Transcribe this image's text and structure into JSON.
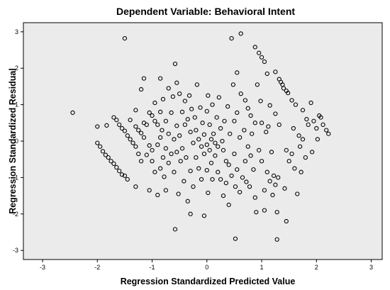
{
  "chart_data": {
    "type": "scatter",
    "title": "Dependent Variable: Behavioral Intent",
    "xlabel": "Regression Standardized Predicted Value",
    "ylabel": "Regression Standardized Residual",
    "xlim": [
      -3.35,
      3.2
    ],
    "ylim": [
      -3.25,
      3.25
    ],
    "x_ticks": [
      "-3",
      "-2",
      "-1",
      "0",
      "1",
      "2",
      "3"
    ],
    "y_ticks": [
      "3",
      "2",
      "1",
      "0",
      "-1",
      "-2",
      "-3"
    ],
    "grid": false,
    "legend": "none",
    "plot_background": "#ebebeb",
    "marker": "open-circle",
    "points": [
      [
        -2.45,
        0.78
      ],
      [
        -2.0,
        0.4
      ],
      [
        -2.0,
        -0.05
      ],
      [
        -1.95,
        -0.15
      ],
      [
        -1.9,
        -0.28
      ],
      [
        -1.85,
        -0.38
      ],
      [
        -1.83,
        0.43
      ],
      [
        -1.8,
        -0.45
      ],
      [
        -1.75,
        -0.55
      ],
      [
        -1.7,
        0.65
      ],
      [
        -1.7,
        -0.62
      ],
      [
        -1.65,
        0.58
      ],
      [
        -1.65,
        -0.72
      ],
      [
        -1.6,
        0.45
      ],
      [
        -1.6,
        -0.82
      ],
      [
        -1.55,
        0.35
      ],
      [
        -1.55,
        -0.92
      ],
      [
        -1.5,
        2.82
      ],
      [
        -1.5,
        0.28
      ],
      [
        -1.5,
        -0.95
      ],
      [
        -1.45,
        0.15
      ],
      [
        -1.45,
        -1.05
      ],
      [
        -1.4,
        0.58
      ],
      [
        -1.4,
        0.05
      ],
      [
        -1.35,
        -0.05
      ],
      [
        -1.3,
        0.85
      ],
      [
        -1.3,
        0.4
      ],
      [
        -1.3,
        -0.15
      ],
      [
        -1.3,
        -1.25
      ],
      [
        -1.25,
        0.3
      ],
      [
        -1.25,
        -0.35
      ],
      [
        -1.2,
        1.42
      ],
      [
        -1.2,
        0.22
      ],
      [
        -1.2,
        -0.55
      ],
      [
        -1.15,
        1.72
      ],
      [
        -1.15,
        0.5
      ],
      [
        -1.15,
        0.1
      ],
      [
        -1.1,
        0.45
      ],
      [
        -1.1,
        -0.38
      ],
      [
        -1.05,
        0.78
      ],
      [
        -1.05,
        -0.12
      ],
      [
        -1.05,
        -1.35
      ],
      [
        -1.0,
        0.7
      ],
      [
        -1.0,
        -0.25
      ],
      [
        -1.0,
        -0.55
      ],
      [
        -0.95,
        0.55
      ],
      [
        -0.95,
        1.05
      ],
      [
        -0.95,
        -0.85
      ],
      [
        -0.9,
        0.45
      ],
      [
        -0.9,
        -0.1
      ],
      [
        -0.9,
        -1.48
      ],
      [
        -0.85,
        1.72
      ],
      [
        -0.85,
        0.8
      ],
      [
        -0.85,
        0.1
      ],
      [
        -0.85,
        -0.75
      ],
      [
        -0.82,
        0.3
      ],
      [
        -0.8,
        1.15
      ],
      [
        -0.8,
        -0.45
      ],
      [
        -0.78,
        -0.98
      ],
      [
        -0.75,
        0.55
      ],
      [
        -0.75,
        -0.2
      ],
      [
        -0.75,
        -1.35
      ],
      [
        -0.7,
        1.45
      ],
      [
        -0.7,
        0.2
      ],
      [
        -0.7,
        -0.6
      ],
      [
        -0.65,
        0.78
      ],
      [
        -0.65,
        -0.35
      ],
      [
        -0.62,
        1.22
      ],
      [
        -0.6,
        0.05
      ],
      [
        -0.6,
        -0.85
      ],
      [
        -0.58,
        2.12
      ],
      [
        -0.58,
        -2.42
      ],
      [
        -0.55,
        1.6
      ],
      [
        -0.55,
        0.42
      ],
      [
        -0.55,
        -0.3
      ],
      [
        -0.52,
        -1.45
      ],
      [
        -0.5,
        1.3
      ],
      [
        -0.5,
        0.15
      ],
      [
        -0.48,
        -0.55
      ],
      [
        -0.45,
        0.8
      ],
      [
        -0.45,
        -0.2
      ],
      [
        -0.42,
        -1.1
      ],
      [
        -0.4,
        1.1
      ],
      [
        -0.4,
        0.45
      ],
      [
        -0.38,
        -0.45
      ],
      [
        -0.35,
        -1.65
      ],
      [
        -0.35,
        0.6
      ],
      [
        -0.32,
        1.25
      ],
      [
        -0.3,
        0.25
      ],
      [
        -0.3,
        -0.82
      ],
      [
        -0.3,
        -2.0
      ],
      [
        -0.28,
        0.88
      ],
      [
        -0.25,
        -0.05
      ],
      [
        -0.25,
        -1.25
      ],
      [
        -0.22,
        0.65
      ],
      [
        -0.2,
        0.3
      ],
      [
        -0.2,
        -0.45
      ],
      [
        -0.18,
        1.55
      ],
      [
        -0.15,
        0.05
      ],
      [
        -0.15,
        -0.75
      ],
      [
        -0.12,
        0.92
      ],
      [
        -0.1,
        -0.15
      ],
      [
        -0.1,
        -1.05
      ],
      [
        -0.08,
        0.5
      ],
      [
        -0.05,
        0.18
      ],
      [
        -0.05,
        -0.35
      ],
      [
        -0.05,
        -2.05
      ],
      [
        0.0,
        0.82
      ],
      [
        0.0,
        -0.1
      ],
      [
        0.0,
        -0.8
      ],
      [
        0.02,
        1.25
      ],
      [
        0.02,
        -1.42
      ],
      [
        0.05,
        0.45
      ],
      [
        0.05,
        -0.25
      ],
      [
        0.08,
        0.05
      ],
      [
        0.08,
        -0.6
      ],
      [
        0.1,
        1.0
      ],
      [
        0.1,
        -1.05
      ],
      [
        0.12,
        0.2
      ],
      [
        0.15,
        -0.05
      ],
      [
        0.15,
        -0.4
      ],
      [
        0.18,
        0.65
      ],
      [
        0.2,
        -0.15
      ],
      [
        0.2,
        -0.85
      ],
      [
        0.22,
        1.2
      ],
      [
        0.25,
        0.35
      ],
      [
        0.25,
        -1.05
      ],
      [
        0.28,
        0.0
      ],
      [
        0.3,
        -0.25
      ],
      [
        0.3,
        -1.5
      ],
      [
        0.32,
        0.55
      ],
      [
        0.35,
        -0.55
      ],
      [
        0.35,
        -1.15
      ],
      [
        0.38,
        0.95
      ],
      [
        0.4,
        -0.65
      ],
      [
        0.4,
        -1.75
      ],
      [
        0.42,
        0.2
      ],
      [
        0.45,
        2.82
      ],
      [
        0.45,
        -0.95
      ],
      [
        0.48,
        1.55
      ],
      [
        0.5,
        0.55
      ],
      [
        0.5,
        -0.35
      ],
      [
        0.52,
        -1.25
      ],
      [
        0.52,
        -2.68
      ],
      [
        0.55,
        1.88
      ],
      [
        0.55,
        0.78
      ],
      [
        0.55,
        -0.78
      ],
      [
        0.6,
        0.1
      ],
      [
        0.6,
        -1.4
      ],
      [
        0.62,
        2.95
      ],
      [
        0.62,
        1.3
      ],
      [
        0.65,
        -1.0
      ],
      [
        0.68,
        0.3
      ],
      [
        0.7,
        1.12
      ],
      [
        0.7,
        -0.55
      ],
      [
        0.72,
        -1.12
      ],
      [
        0.75,
        0.9
      ],
      [
        0.75,
        -0.15
      ],
      [
        0.78,
        -1.25
      ],
      [
        0.8,
        0.7
      ],
      [
        0.8,
        -0.4
      ],
      [
        0.82,
        0.2
      ],
      [
        0.85,
        -0.78
      ],
      [
        0.88,
        2.58
      ],
      [
        0.88,
        0.5
      ],
      [
        0.88,
        -1.55
      ],
      [
        0.9,
        -1.95
      ],
      [
        0.92,
        1.55
      ],
      [
        0.95,
        2.42
      ],
      [
        0.95,
        -0.25
      ],
      [
        0.98,
        1.1
      ],
      [
        1.0,
        2.3
      ],
      [
        1.0,
        0.5
      ],
      [
        1.0,
        -0.55
      ],
      [
        1.05,
        2.18
      ],
      [
        1.05,
        -1.35
      ],
      [
        1.05,
        -1.9
      ],
      [
        1.08,
        0.25
      ],
      [
        1.1,
        1.85
      ],
      [
        1.1,
        -0.85
      ],
      [
        1.12,
        0.4
      ],
      [
        1.15,
        0.98
      ],
      [
        1.15,
        -1.1
      ],
      [
        1.18,
        -0.3
      ],
      [
        1.2,
        -1.48
      ],
      [
        1.22,
        -0.95
      ],
      [
        1.25,
        1.9
      ],
      [
        1.25,
        0.75
      ],
      [
        1.25,
        -1.2
      ],
      [
        1.28,
        -2.7
      ],
      [
        1.28,
        -1.95
      ],
      [
        1.3,
        -1.0
      ],
      [
        1.32,
        1.7
      ],
      [
        1.32,
        0.45
      ],
      [
        1.35,
        1.62
      ],
      [
        1.38,
        1.55
      ],
      [
        1.4,
        1.45
      ],
      [
        1.42,
        -1.3
      ],
      [
        1.45,
        1.38
      ],
      [
        1.45,
        -0.25
      ],
      [
        1.45,
        -2.2
      ],
      [
        1.48,
        1.32
      ],
      [
        1.5,
        -0.55
      ],
      [
        1.55,
        1.12
      ],
      [
        1.55,
        -0.35
      ],
      [
        1.58,
        0.35
      ],
      [
        1.6,
        -0.75
      ],
      [
        1.62,
        1.0
      ],
      [
        1.65,
        -1.45
      ],
      [
        1.68,
        0.15
      ],
      [
        1.7,
        -0.15
      ],
      [
        1.72,
        -0.85
      ],
      [
        1.75,
        0.85
      ],
      [
        1.75,
        0.05
      ],
      [
        1.8,
        -0.45
      ],
      [
        1.82,
        0.6
      ],
      [
        1.85,
        0.45
      ],
      [
        1.9,
        1.05
      ],
      [
        1.92,
        -0.3
      ],
      [
        1.95,
        0.55
      ],
      [
        2.0,
        0.35
      ],
      [
        2.02,
        0.05
      ],
      [
        2.05,
        0.7
      ],
      [
        2.08,
        0.65
      ],
      [
        2.12,
        0.45
      ],
      [
        2.18,
        0.3
      ],
      [
        2.22,
        0.2
      ]
    ]
  }
}
